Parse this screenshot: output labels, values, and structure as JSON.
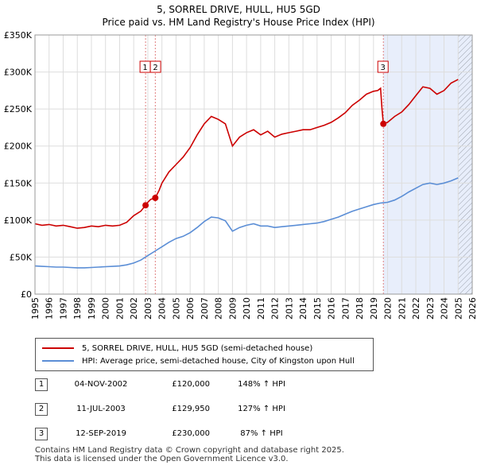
{
  "header": {
    "title": "5, SORREL DRIVE, HULL, HU5 5GD",
    "subtitle": "Price paid vs. HM Land Registry's House Price Index (HPI)"
  },
  "chart_data": {
    "type": "line",
    "title": "5, SORREL DRIVE, HULL, HU5 5GD",
    "subtitle": "Price paid vs. HM Land Registry's House Price Index (HPI)",
    "xlim": [
      1995,
      2026
    ],
    "ylim": [
      0,
      350000
    ],
    "x_ticks": [
      1995,
      1996,
      1997,
      1998,
      1999,
      2000,
      2001,
      2002,
      2003,
      2004,
      2005,
      2006,
      2007,
      2008,
      2009,
      2010,
      2011,
      2012,
      2013,
      2014,
      2015,
      2016,
      2017,
      2018,
      2019,
      2020,
      2021,
      2022,
      2023,
      2024,
      2025,
      2026
    ],
    "y_ticks": [
      {
        "value": 0,
        "label": "£0"
      },
      {
        "value": 50000,
        "label": "£50K"
      },
      {
        "value": 100000,
        "label": "£100K"
      },
      {
        "value": 150000,
        "label": "£150K"
      },
      {
        "value": 200000,
        "label": "£200K"
      },
      {
        "value": 250000,
        "label": "£250K"
      },
      {
        "value": 300000,
        "label": "£300K"
      },
      {
        "value": 350000,
        "label": "£350K"
      }
    ],
    "grid": true,
    "colors": {
      "property": "#cc0000",
      "hpi": "#5b8ed6",
      "shade": "#e8eefb",
      "vline": "#e08080"
    },
    "shaded_from": 2019.7,
    "hatched_from": 2025.0,
    "series": [
      {
        "name": "5, SORREL DRIVE, HULL, HU5 5GD (semi-detached house)",
        "key": "property",
        "points": [
          [
            1995,
            95000
          ],
          [
            1995.5,
            93000
          ],
          [
            1996,
            94000
          ],
          [
            1996.5,
            92000
          ],
          [
            1997,
            93000
          ],
          [
            1997.5,
            91000
          ],
          [
            1998,
            89000
          ],
          [
            1998.5,
            90000
          ],
          [
            1999,
            92000
          ],
          [
            1999.5,
            91000
          ],
          [
            2000,
            93000
          ],
          [
            2000.5,
            92000
          ],
          [
            2001,
            93000
          ],
          [
            2001.5,
            97000
          ],
          [
            2002,
            106000
          ],
          [
            2002.5,
            112000
          ],
          [
            2002.84,
            120000
          ],
          [
            2003.0,
            124000
          ],
          [
            2003.2,
            128000
          ],
          [
            2003.53,
            129950
          ],
          [
            2003.8,
            140000
          ],
          [
            2004,
            150000
          ],
          [
            2004.5,
            165000
          ],
          [
            2005,
            175000
          ],
          [
            2005.5,
            185000
          ],
          [
            2006,
            198000
          ],
          [
            2006.5,
            215000
          ],
          [
            2007,
            230000
          ],
          [
            2007.5,
            240000
          ],
          [
            2008,
            236000
          ],
          [
            2008.5,
            230000
          ],
          [
            2009,
            200000
          ],
          [
            2009.5,
            212000
          ],
          [
            2010,
            218000
          ],
          [
            2010.5,
            222000
          ],
          [
            2011,
            215000
          ],
          [
            2011.5,
            220000
          ],
          [
            2012,
            212000
          ],
          [
            2012.5,
            216000
          ],
          [
            2013,
            218000
          ],
          [
            2013.5,
            220000
          ],
          [
            2014,
            222000
          ],
          [
            2014.5,
            222000
          ],
          [
            2015,
            225000
          ],
          [
            2015.5,
            228000
          ],
          [
            2016,
            232000
          ],
          [
            2016.5,
            238000
          ],
          [
            2017,
            245000
          ],
          [
            2017.5,
            255000
          ],
          [
            2018,
            262000
          ],
          [
            2018.5,
            270000
          ],
          [
            2019,
            274000
          ],
          [
            2019.3,
            275000
          ],
          [
            2019.5,
            278000
          ],
          [
            2019.6,
            250000
          ],
          [
            2019.7,
            230000
          ],
          [
            2020,
            232000
          ],
          [
            2020.5,
            240000
          ],
          [
            2021,
            246000
          ],
          [
            2021.5,
            256000
          ],
          [
            2022,
            268000
          ],
          [
            2022.5,
            280000
          ],
          [
            2023,
            278000
          ],
          [
            2023.5,
            270000
          ],
          [
            2024,
            275000
          ],
          [
            2024.5,
            285000
          ],
          [
            2025,
            290000
          ]
        ]
      },
      {
        "name": "HPI: Average price, semi-detached house, City of Kingston upon Hull",
        "key": "hpi",
        "points": [
          [
            1995,
            38000
          ],
          [
            1995.5,
            37500
          ],
          [
            1996,
            37000
          ],
          [
            1996.5,
            36500
          ],
          [
            1997,
            36500
          ],
          [
            1997.5,
            36000
          ],
          [
            1998,
            35500
          ],
          [
            1998.5,
            35500
          ],
          [
            1999,
            36000
          ],
          [
            1999.5,
            36500
          ],
          [
            2000,
            37000
          ],
          [
            2000.5,
            37500
          ],
          [
            2001,
            38000
          ],
          [
            2001.5,
            39500
          ],
          [
            2002,
            42000
          ],
          [
            2002.5,
            46000
          ],
          [
            2003,
            52000
          ],
          [
            2003.5,
            58000
          ],
          [
            2004,
            64000
          ],
          [
            2004.5,
            70000
          ],
          [
            2005,
            75000
          ],
          [
            2005.5,
            78000
          ],
          [
            2006,
            83000
          ],
          [
            2006.5,
            90000
          ],
          [
            2007,
            98000
          ],
          [
            2007.5,
            104000
          ],
          [
            2008,
            103000
          ],
          [
            2008.5,
            99000
          ],
          [
            2009,
            85000
          ],
          [
            2009.5,
            90000
          ],
          [
            2010,
            93000
          ],
          [
            2010.5,
            95000
          ],
          [
            2011,
            92000
          ],
          [
            2011.5,
            92000
          ],
          [
            2012,
            90000
          ],
          [
            2012.5,
            91000
          ],
          [
            2013,
            92000
          ],
          [
            2013.5,
            93000
          ],
          [
            2014,
            94000
          ],
          [
            2014.5,
            95000
          ],
          [
            2015,
            96000
          ],
          [
            2015.5,
            98000
          ],
          [
            2016,
            101000
          ],
          [
            2016.5,
            104000
          ],
          [
            2017,
            108000
          ],
          [
            2017.5,
            112000
          ],
          [
            2018,
            115000
          ],
          [
            2018.5,
            118000
          ],
          [
            2019,
            121000
          ],
          [
            2019.5,
            123000
          ],
          [
            2020,
            124000
          ],
          [
            2020.5,
            127000
          ],
          [
            2021,
            132000
          ],
          [
            2021.5,
            138000
          ],
          [
            2022,
            143000
          ],
          [
            2022.5,
            148000
          ],
          [
            2023,
            150000
          ],
          [
            2023.5,
            148000
          ],
          [
            2024,
            150000
          ],
          [
            2024.5,
            153000
          ],
          [
            2025,
            157000
          ]
        ]
      }
    ],
    "sales": [
      {
        "num": "1",
        "x": 2002.84,
        "price": 120000
      },
      {
        "num": "2",
        "x": 2003.53,
        "price": 129950
      },
      {
        "num": "3",
        "x": 2019.7,
        "price": 230000
      }
    ]
  },
  "legend": {
    "property_label": "5, SORREL DRIVE, HULL, HU5 5GD (semi-detached house)",
    "hpi_label": "HPI: Average price, semi-detached house, City of Kingston upon Hull"
  },
  "transactions": [
    {
      "num": "1",
      "date": "04-NOV-2002",
      "price": "£120,000",
      "hpi": "148% ↑ HPI"
    },
    {
      "num": "2",
      "date": "11-JUL-2003",
      "price": "£129,950",
      "hpi": "127% ↑ HPI"
    },
    {
      "num": "3",
      "date": "12-SEP-2019",
      "price": "£230,000",
      "hpi": "87% ↑ HPI"
    }
  ],
  "footer": {
    "line1": "Contains HM Land Registry data © Crown copyright and database right 2025.",
    "line2": "This data is licensed under the Open Government Licence v3.0."
  }
}
